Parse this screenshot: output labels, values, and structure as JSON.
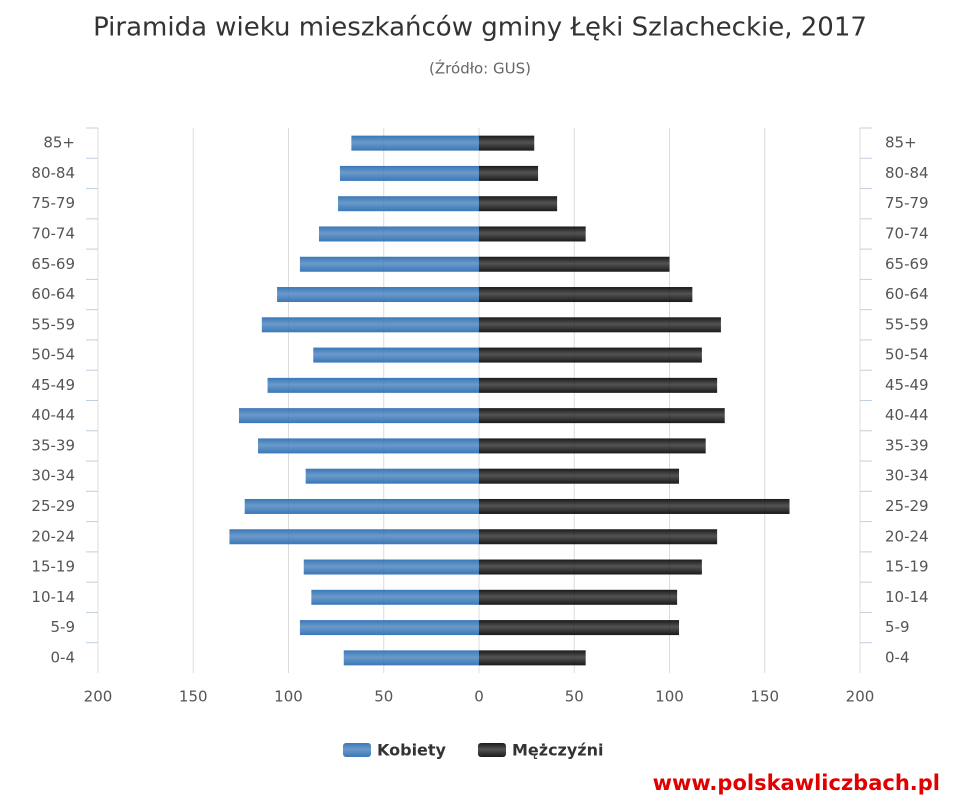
{
  "chart_data": {
    "type": "pyramid",
    "title": "Piramida wieku mieszkańców gminy Łęki Szlacheckie, 2017",
    "subtitle": "(Źródło: GUS)",
    "categories": [
      "85+",
      "80-84",
      "75-79",
      "70-74",
      "65-69",
      "60-64",
      "55-59",
      "50-54",
      "45-49",
      "40-44",
      "35-39",
      "30-34",
      "25-29",
      "20-24",
      "15-19",
      "10-14",
      "5-9",
      "0-4"
    ],
    "series": [
      {
        "name": "Kobiety",
        "color": "#3a78b8",
        "side": "left",
        "values": [
          67,
          73,
          74,
          84,
          94,
          106,
          114,
          87,
          111,
          126,
          116,
          91,
          123,
          131,
          92,
          88,
          94,
          71
        ]
      },
      {
        "name": "Mężczyźni",
        "color": "#1a1a1a",
        "side": "right",
        "values": [
          29,
          31,
          41,
          56,
          100,
          112,
          127,
          117,
          125,
          129,
          119,
          105,
          163,
          125,
          117,
          104,
          105,
          56
        ]
      }
    ],
    "xlim": [
      -200,
      200
    ],
    "xticks": [
      {
        "value": -200,
        "label": "200"
      },
      {
        "value": -150,
        "label": "150"
      },
      {
        "value": -100,
        "label": "100"
      },
      {
        "value": -50,
        "label": "50"
      },
      0,
      50,
      100,
      150,
      200
    ],
    "grid": true,
    "legend": "bottom"
  },
  "footer": "www.polskawliczbach.pl"
}
